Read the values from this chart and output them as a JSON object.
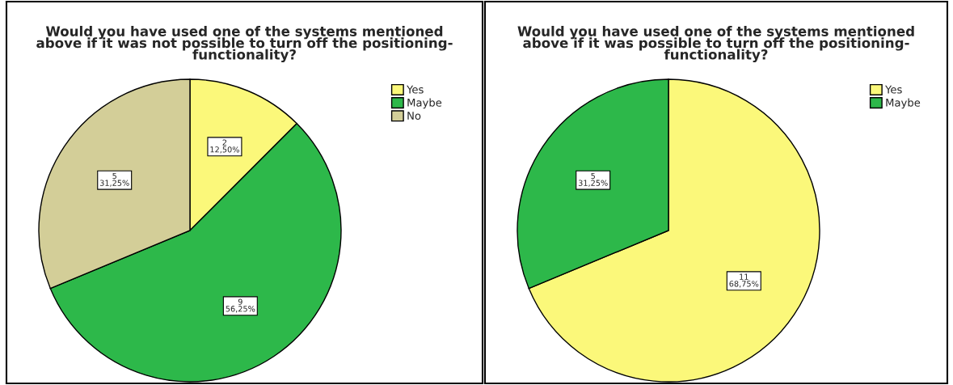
{
  "chart_data": [
    {
      "type": "pie",
      "title": "Would you have used one of the systems mentioned\nabove if it was not possible to turn off the positioning-\nfunctionality?",
      "categories": [
        "Yes",
        "Maybe",
        "No"
      ],
      "values": [
        2,
        9,
        5
      ],
      "colors": [
        "#fbf87a",
        "#2db84a",
        "#d3ce98"
      ],
      "value_labels": [
        "2\n12,50%",
        "9\n56,25%",
        "5\n31,25%"
      ],
      "legend": "top right"
    },
    {
      "type": "pie",
      "title": "Would you have used one of the systems mentioned\nabove if it was possible to turn off the positioning-\nfunctionality?",
      "categories": [
        "Yes",
        "Maybe"
      ],
      "values": [
        11,
        5
      ],
      "colors": [
        "#fbf87a",
        "#2db84a"
      ],
      "value_labels": [
        "11\n68,75%",
        "5\n31,25%"
      ],
      "legend": "top right"
    }
  ]
}
